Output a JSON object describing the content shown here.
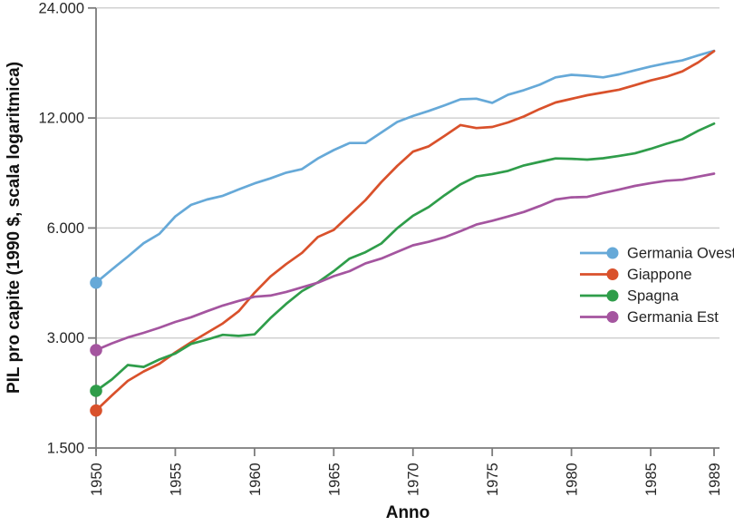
{
  "figure": {
    "y_axis_title": "PIL pro capite (1990 $, scala logaritmica)",
    "x_axis_title": "Anno"
  },
  "colors": {
    "background": "#ffffff",
    "grid": "#c8c8c8",
    "axis": "#7b7b7b",
    "tick_text": "#262626",
    "title_text": "#111111",
    "legend_text": "#242424"
  },
  "chart_data": {
    "type": "line",
    "title": "",
    "xlabel": "Anno",
    "ylabel": "PIL pro capite (1990 $, scala logaritmica)",
    "y_scale": "log",
    "grid": true,
    "legend_position": "right-center",
    "x_range": [
      1950,
      1989
    ],
    "y_range": [
      1500,
      24000
    ],
    "x_ticks": [
      1950,
      1955,
      1960,
      1965,
      1970,
      1975,
      1980,
      1985,
      1989
    ],
    "y_ticks": [
      {
        "value": 1500,
        "label": "1.500"
      },
      {
        "value": 3000,
        "label": "3.000"
      },
      {
        "value": 6000,
        "label": "6.000"
      },
      {
        "value": 12000,
        "label": "12.000"
      },
      {
        "value": 24000,
        "label": "24.000"
      }
    ],
    "years": [
      1950,
      1951,
      1952,
      1953,
      1954,
      1955,
      1956,
      1957,
      1958,
      1959,
      1960,
      1961,
      1962,
      1963,
      1964,
      1965,
      1966,
      1967,
      1968,
      1969,
      1970,
      1971,
      1972,
      1973,
      1974,
      1975,
      1976,
      1977,
      1978,
      1979,
      1980,
      1981,
      1982,
      1983,
      1984,
      1985,
      1986,
      1987,
      1988,
      1989
    ],
    "series": [
      {
        "name": "Germania Ovest",
        "color": "#66a9d8",
        "start_marker": true,
        "values": [
          4250,
          4620,
          5010,
          5450,
          5780,
          6450,
          6940,
          7180,
          7350,
          7650,
          7950,
          8200,
          8500,
          8700,
          9300,
          9800,
          10250,
          10250,
          10950,
          11700,
          12150,
          12550,
          13000,
          13500,
          13550,
          13200,
          13900,
          14300,
          14800,
          15500,
          15750,
          15650,
          15500,
          15800,
          16200,
          16600,
          16950,
          17250,
          17800,
          18330
        ]
      },
      {
        "name": "Giappone",
        "color": "#d9512b",
        "start_marker": true,
        "values": [
          1900,
          2090,
          2290,
          2430,
          2550,
          2740,
          2920,
          3100,
          3290,
          3550,
          3990,
          4420,
          4780,
          5130,
          5670,
          5930,
          6510,
          7150,
          8010,
          8870,
          9710,
          10040,
          10730,
          11480,
          11260,
          11340,
          11670,
          12120,
          12700,
          13230,
          13540,
          13850,
          14090,
          14340,
          14760,
          15200,
          15560,
          16100,
          17030,
          18280
        ]
      },
      {
        "name": "Spagna",
        "color": "#2f9d4a",
        "start_marker": true,
        "values": [
          2150,
          2310,
          2530,
          2500,
          2620,
          2720,
          2890,
          2970,
          3060,
          3040,
          3070,
          3400,
          3720,
          4030,
          4260,
          4570,
          4950,
          5150,
          5440,
          5990,
          6480,
          6850,
          7380,
          7900,
          8300,
          8430,
          8600,
          8900,
          9100,
          9300,
          9280,
          9230,
          9310,
          9450,
          9600,
          9880,
          10200,
          10500,
          11070,
          11580
        ]
      },
      {
        "name": "Germania Est",
        "color": "#a4559f",
        "start_marker": true,
        "values": [
          2780,
          2900,
          3010,
          3100,
          3200,
          3320,
          3420,
          3550,
          3680,
          3790,
          3890,
          3920,
          4010,
          4130,
          4250,
          4430,
          4570,
          4800,
          4950,
          5160,
          5380,
          5500,
          5660,
          5880,
          6130,
          6280,
          6450,
          6640,
          6890,
          7180,
          7280,
          7300,
          7480,
          7640,
          7820,
          7960,
          8080,
          8130,
          8290,
          8450
        ]
      }
    ]
  }
}
